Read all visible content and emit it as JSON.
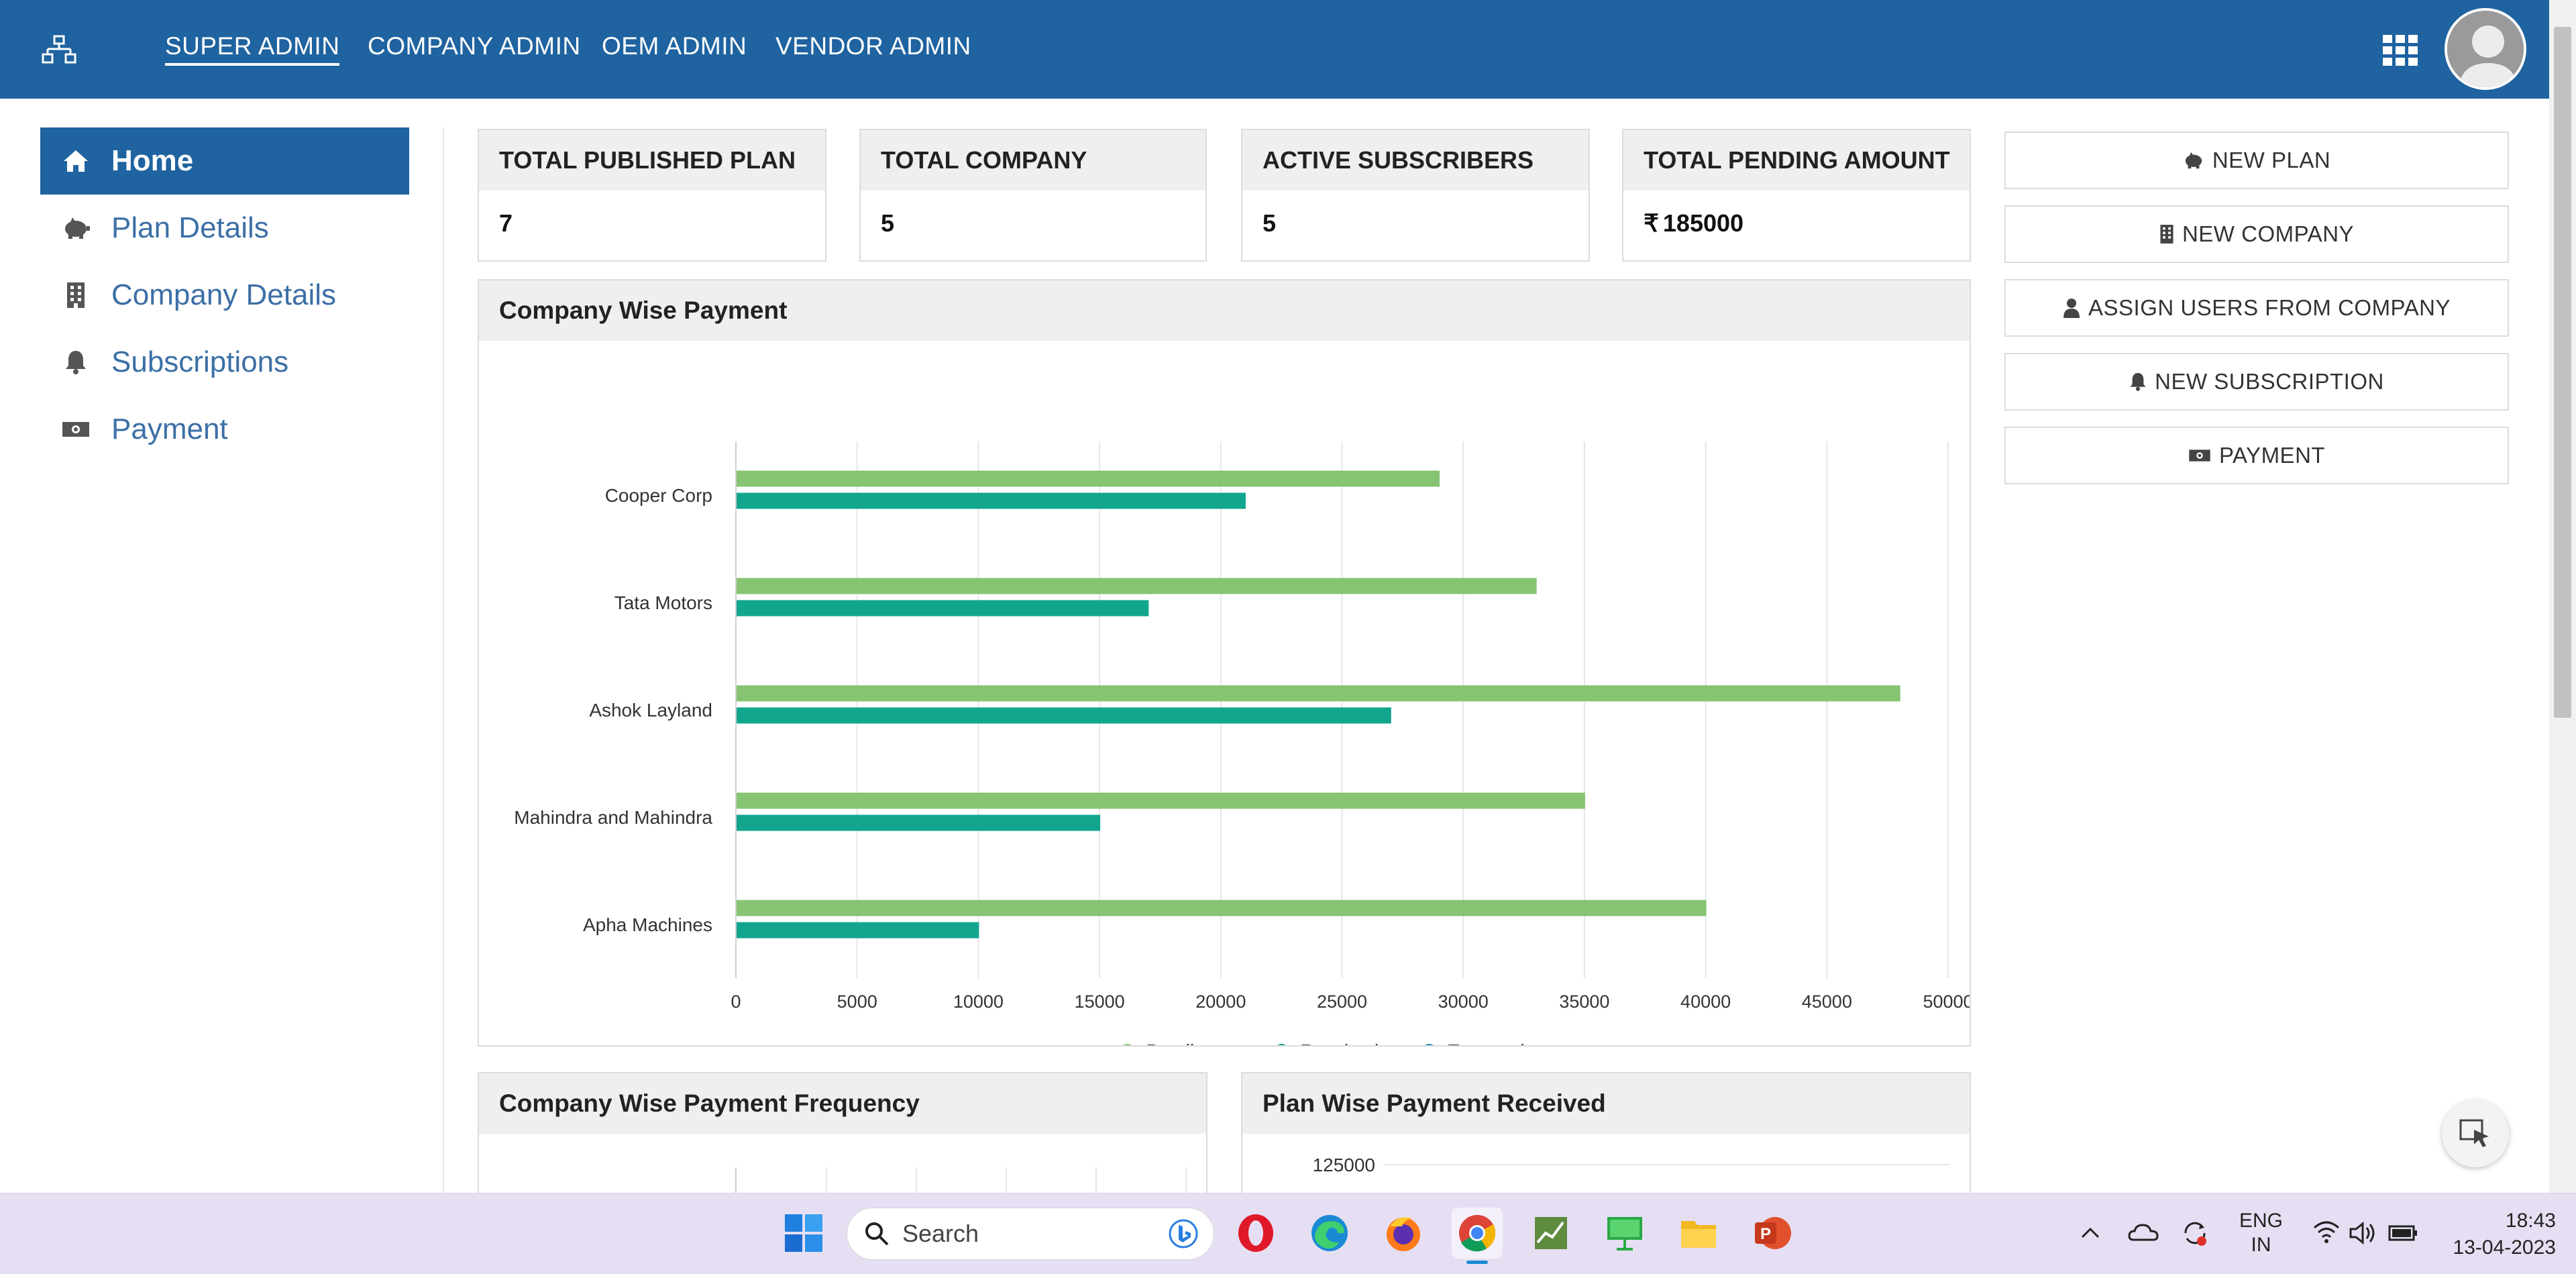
{
  "header": {
    "tabs": [
      {
        "label": "SUPER ADMIN",
        "active": true
      },
      {
        "label": "COMPANY ADMIN",
        "active": false
      },
      {
        "label": "OEM ADMIN",
        "active": false
      },
      {
        "label": "VENDOR ADMIN",
        "active": false
      }
    ],
    "icons": [
      "sitemap-icon",
      "apps-grid-icon",
      "user-avatar"
    ]
  },
  "sidebar": {
    "items": [
      {
        "label": "Home",
        "icon": "home-icon",
        "active": true
      },
      {
        "label": "Plan Details",
        "icon": "piggy-bank-icon",
        "active": false
      },
      {
        "label": "Company Details",
        "icon": "building-icon",
        "active": false
      },
      {
        "label": "Subscriptions",
        "icon": "bell-icon",
        "active": false
      },
      {
        "label": "Payment",
        "icon": "money-icon",
        "active": false
      }
    ]
  },
  "stats": [
    {
      "title": "TOTAL PUBLISHED PLAN",
      "value": "7"
    },
    {
      "title": "TOTAL COMPANY",
      "value": "5"
    },
    {
      "title": "ACTIVE SUBSCRIBERS",
      "value": "5"
    },
    {
      "title": "TOTAL PENDING AMOUNT",
      "currency": "₹",
      "value": "185000"
    }
  ],
  "actions": [
    {
      "label": "NEW PLAN",
      "icon": "piggy-bank-icon"
    },
    {
      "label": "NEW COMPANY",
      "icon": "building-icon"
    },
    {
      "label": "ASSIGN USERS FROM COMPANY",
      "icon": "user-icon"
    },
    {
      "label": "NEW SUBSCRIPTION",
      "icon": "bell-icon"
    },
    {
      "label": "PAYMENT",
      "icon": "money-icon"
    }
  ],
  "panels": {
    "company_wise_payment": "Company Wise Payment",
    "frequency": "Company Wise Payment Frequency",
    "plan_wise": "Plan Wise Payment Received",
    "plan_wise_top_tick": "125000"
  },
  "chart_data": {
    "type": "bar",
    "orientation": "horizontal",
    "categories": [
      "Cooper Corp",
      "Tata Motors",
      "Ashok Layland",
      "Mahindra and Mahindra",
      "Apha Machines"
    ],
    "series": [
      {
        "name": "Pending",
        "color": "#86c474",
        "values": [
          29000,
          33000,
          48000,
          35000,
          40000
        ]
      },
      {
        "name": "Received",
        "color": "#13a68f",
        "values": [
          21000,
          17000,
          27000,
          15000,
          10000
        ]
      },
      {
        "name": "Transactions",
        "color": "#1487a8",
        "values": [
          0,
          0,
          0,
          0,
          0
        ]
      }
    ],
    "xlim": [
      0,
      50000
    ],
    "xticks": [
      "0",
      "5000",
      "10000",
      "15000",
      "20000",
      "25000",
      "30000",
      "35000",
      "40000",
      "45000",
      "50000"
    ],
    "grid": true,
    "legend": "bottom"
  },
  "taskbar": {
    "search_placeholder": "Search",
    "apps": [
      "windows-start-icon",
      "opera-icon",
      "edge-icon",
      "firefox-icon",
      "chrome-icon",
      "excel-chart-icon",
      "presentation-icon",
      "file-explorer-icon",
      "powerpoint-icon"
    ],
    "lang_top": "ENG",
    "lang_bottom": "IN",
    "time": "18:43",
    "date": "13-04-2023"
  }
}
